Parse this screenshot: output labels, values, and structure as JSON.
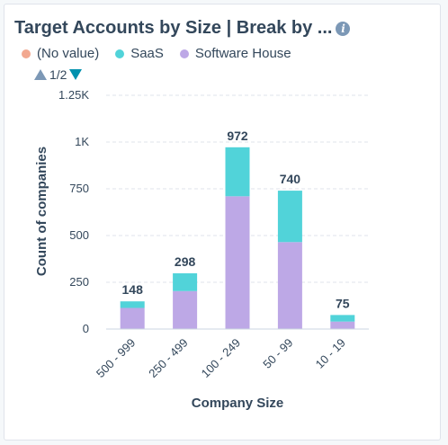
{
  "title": "Target Accounts by Size | Break by ...",
  "info_icon": "info-icon",
  "pager": {
    "text": "1/2",
    "prev_icon": "triangle-up-icon",
    "next_icon": "triangle-down-icon"
  },
  "colors": {
    "no_value": "#f2a890",
    "saas": "#51d3d9",
    "software_house": "#bda8e6",
    "text": "#33475b",
    "grid": "#dfe3eb"
  },
  "chart_data": {
    "type": "bar",
    "stacked": true,
    "title": "Target Accounts by Size | Break by ...",
    "xlabel": "Company Size",
    "ylabel": "Count of companies",
    "categories": [
      "500 - 999",
      "250 - 499",
      "100 - 249",
      "50 - 99",
      "10 - 19"
    ],
    "ylim": [
      0,
      1250
    ],
    "yticks": [
      0,
      250,
      500,
      750,
      1000,
      1250
    ],
    "ytick_labels": [
      "0",
      "250",
      "500",
      "750",
      "1K",
      "1.25K"
    ],
    "grid": true,
    "legend_position": "top-left",
    "series": [
      {
        "name": "(No value)",
        "values": [
          0,
          0,
          0,
          0,
          0
        ]
      },
      {
        "name": "SaaS",
        "values": [
          35,
          95,
          262,
          275,
          35
        ]
      },
      {
        "name": "Software House",
        "values": [
          113,
          203,
          710,
          465,
          40
        ]
      }
    ],
    "totals": [
      148,
      298,
      972,
      740,
      75
    ]
  }
}
